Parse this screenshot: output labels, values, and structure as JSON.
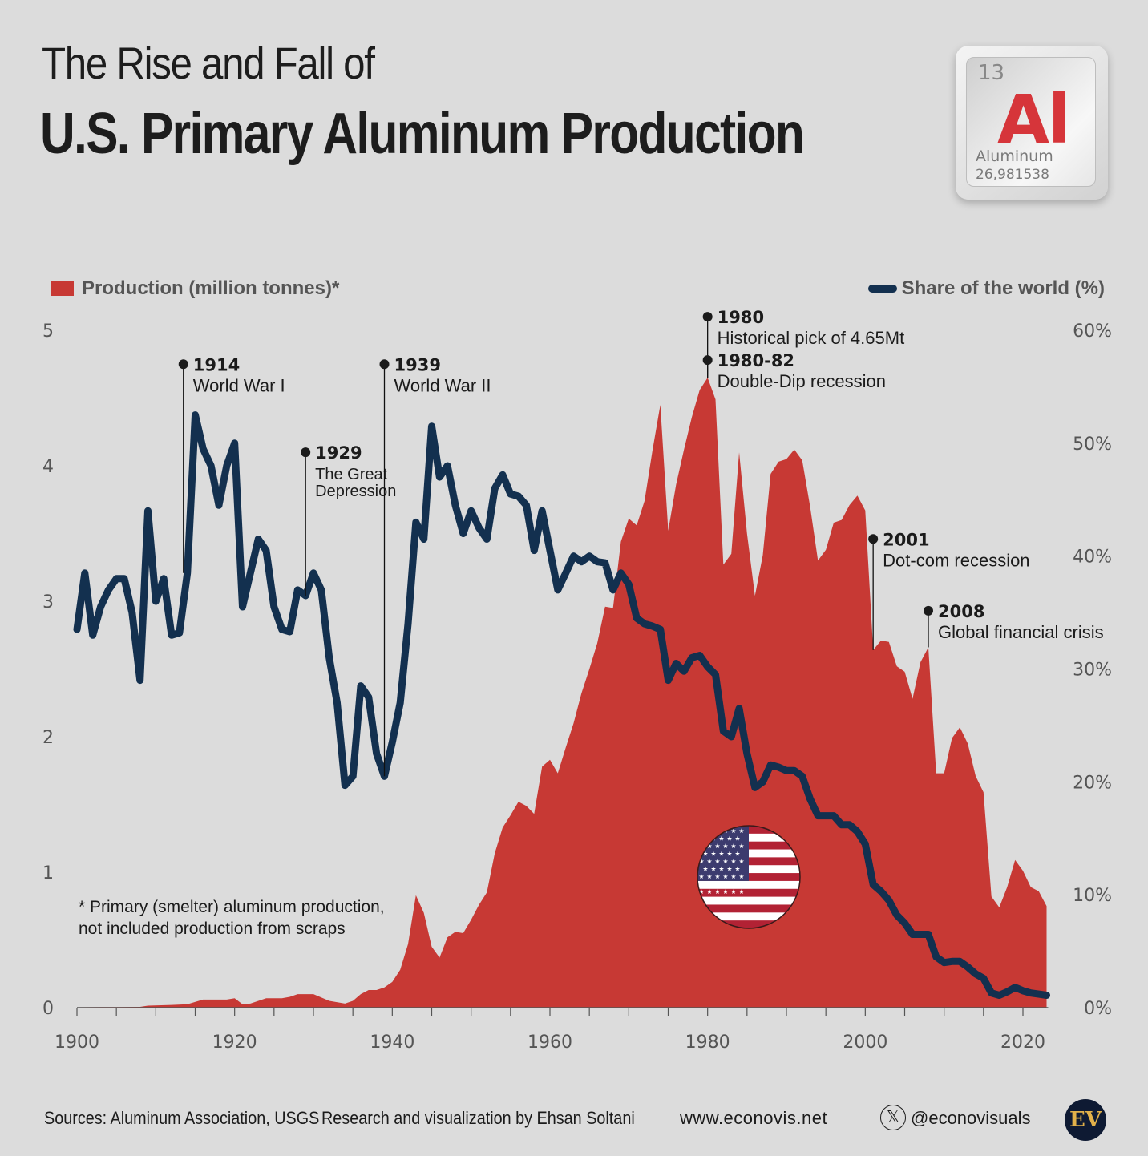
{
  "header": {
    "title_line1": "The Rise and Fall of",
    "title_line2": "U.S. Primary Aluminum Production"
  },
  "element_tile": {
    "atomic_number": "13",
    "symbol": "Al",
    "name": "Aluminum",
    "atomic_mass": "26,981538",
    "symbol_color": "#d6353a"
  },
  "legend": {
    "production_label": "Production (million tonnes)*",
    "share_label": "Share of the world (%)",
    "production_color": "#c73934",
    "share_color": "#13304f"
  },
  "footnote": {
    "line1": "* Primary (smelter) aluminum production,",
    "line2": "not included production from scraps"
  },
  "footer": {
    "sources": "Sources: Aluminum Association, USGS",
    "research": "Research and visualization by Ehsan Soltani",
    "website": "www.econovis.net",
    "x_icon": "𝕏",
    "handle": "@econovisuals",
    "logo": "EV"
  },
  "chart_data": {
    "type": "area",
    "title": "U.S. Primary Aluminum Production",
    "xlabel": "",
    "ylabel_left": "Production (million tonnes)",
    "ylabel_right": "Share of the world (%)",
    "xlim": [
      1900,
      2023
    ],
    "ylim_left": [
      0,
      5
    ],
    "ylim_right": [
      0,
      60
    ],
    "x_ticks": [
      1900,
      1920,
      1940,
      1960,
      1980,
      2000,
      2020
    ],
    "y_ticks_left": [
      "0",
      "1",
      "2",
      "3",
      "4",
      "5"
    ],
    "y_ticks_right": [
      "0%",
      "10%",
      "20%",
      "30%",
      "40%",
      "50%",
      "60%"
    ],
    "legend_position": "top",
    "series": [
      {
        "name": "Production (million tonnes)",
        "type": "area",
        "axis": "left",
        "points": [
          [
            1900,
            0.003
          ],
          [
            1905,
            0.005
          ],
          [
            1908,
            0.006
          ],
          [
            1909,
            0.015
          ],
          [
            1912,
            0.02
          ],
          [
            1914,
            0.025
          ],
          [
            1916,
            0.06
          ],
          [
            1919,
            0.06
          ],
          [
            1920,
            0.07
          ],
          [
            1921,
            0.025
          ],
          [
            1922,
            0.03
          ],
          [
            1924,
            0.07
          ],
          [
            1926,
            0.07
          ],
          [
            1927,
            0.08
          ],
          [
            1928,
            0.1
          ],
          [
            1930,
            0.1
          ],
          [
            1932,
            0.05
          ],
          [
            1934,
            0.03
          ],
          [
            1935,
            0.05
          ],
          [
            1936,
            0.1
          ],
          [
            1937,
            0.13
          ],
          [
            1938,
            0.13
          ],
          [
            1939,
            0.15
          ],
          [
            1940,
            0.19
          ],
          [
            1941,
            0.28
          ],
          [
            1942,
            0.47
          ],
          [
            1943,
            0.83
          ],
          [
            1944,
            0.7
          ],
          [
            1945,
            0.45
          ],
          [
            1946,
            0.37
          ],
          [
            1947,
            0.52
          ],
          [
            1948,
            0.56
          ],
          [
            1949,
            0.55
          ],
          [
            1950,
            0.65
          ],
          [
            1951,
            0.76
          ],
          [
            1952,
            0.85
          ],
          [
            1953,
            1.14
          ],
          [
            1954,
            1.33
          ],
          [
            1955,
            1.42
          ],
          [
            1956,
            1.52
          ],
          [
            1957,
            1.49
          ],
          [
            1958,
            1.43
          ],
          [
            1959,
            1.78
          ],
          [
            1960,
            1.83
          ],
          [
            1961,
            1.73
          ],
          [
            1962,
            1.92
          ],
          [
            1963,
            2.1
          ],
          [
            1964,
            2.32
          ],
          [
            1965,
            2.5
          ],
          [
            1966,
            2.69
          ],
          [
            1967,
            2.96
          ],
          [
            1968,
            2.95
          ],
          [
            1969,
            3.44
          ],
          [
            1970,
            3.61
          ],
          [
            1971,
            3.56
          ],
          [
            1972,
            3.74
          ],
          [
            1973,
            4.11
          ],
          [
            1974,
            4.45
          ],
          [
            1975,
            3.52
          ],
          [
            1976,
            3.86
          ],
          [
            1977,
            4.12
          ],
          [
            1978,
            4.36
          ],
          [
            1979,
            4.56
          ],
          [
            1980,
            4.65
          ],
          [
            1981,
            4.49
          ],
          [
            1982,
            3.27
          ],
          [
            1983,
            3.35
          ],
          [
            1984,
            4.1
          ],
          [
            1985,
            3.5
          ],
          [
            1986,
            3.04
          ],
          [
            1987,
            3.34
          ],
          [
            1988,
            3.94
          ],
          [
            1989,
            4.03
          ],
          [
            1990,
            4.05
          ],
          [
            1991,
            4.12
          ],
          [
            1992,
            4.04
          ],
          [
            1993,
            3.7
          ],
          [
            1994,
            3.3
          ],
          [
            1995,
            3.38
          ],
          [
            1996,
            3.58
          ],
          [
            1997,
            3.6
          ],
          [
            1998,
            3.71
          ],
          [
            1999,
            3.78
          ],
          [
            2000,
            3.67
          ],
          [
            2001,
            2.64
          ],
          [
            2002,
            2.71
          ],
          [
            2003,
            2.7
          ],
          [
            2004,
            2.52
          ],
          [
            2005,
            2.48
          ],
          [
            2006,
            2.28
          ],
          [
            2007,
            2.55
          ],
          [
            2008,
            2.66
          ],
          [
            2009,
            1.73
          ],
          [
            2010,
            1.73
          ],
          [
            2011,
            1.99
          ],
          [
            2012,
            2.07
          ],
          [
            2013,
            1.95
          ],
          [
            2014,
            1.71
          ],
          [
            2015,
            1.59
          ],
          [
            2016,
            0.82
          ],
          [
            2017,
            0.74
          ],
          [
            2018,
            0.89
          ],
          [
            2019,
            1.09
          ],
          [
            2020,
            1.01
          ],
          [
            2021,
            0.89
          ],
          [
            2022,
            0.86
          ],
          [
            2023,
            0.75
          ]
        ]
      },
      {
        "name": "Share of the world (%)",
        "type": "line",
        "axis": "right",
        "points": [
          [
            1900,
            33.5
          ],
          [
            1901,
            38.5
          ],
          [
            1902,
            33.0
          ],
          [
            1903,
            35.5
          ],
          [
            1904,
            37.0
          ],
          [
            1905,
            38.0
          ],
          [
            1906,
            38.0
          ],
          [
            1907,
            35.0
          ],
          [
            1908,
            29.0
          ],
          [
            1909,
            44.0
          ],
          [
            1910,
            36.0
          ],
          [
            1911,
            38.0
          ],
          [
            1912,
            33.0
          ],
          [
            1913,
            33.2
          ],
          [
            1914,
            38.5
          ],
          [
            1915,
            52.5
          ],
          [
            1916,
            49.5
          ],
          [
            1917,
            48.0
          ],
          [
            1918,
            44.5
          ],
          [
            1919,
            48.0
          ],
          [
            1920,
            50.0
          ],
          [
            1921,
            35.5
          ],
          [
            1922,
            38.5
          ],
          [
            1923,
            41.5
          ],
          [
            1924,
            40.5
          ],
          [
            1925,
            35.5
          ],
          [
            1926,
            33.5
          ],
          [
            1927,
            33.3
          ],
          [
            1928,
            37.0
          ],
          [
            1929,
            36.5
          ],
          [
            1930,
            38.5
          ],
          [
            1931,
            37.0
          ],
          [
            1932,
            31.0
          ],
          [
            1933,
            27.0
          ],
          [
            1934,
            19.7
          ],
          [
            1935,
            20.5
          ],
          [
            1936,
            28.5
          ],
          [
            1937,
            27.5
          ],
          [
            1938,
            22.5
          ],
          [
            1939,
            20.5
          ],
          [
            1940,
            23.5
          ],
          [
            1941,
            27.0
          ],
          [
            1942,
            34.0
          ],
          [
            1943,
            43.0
          ],
          [
            1944,
            41.5
          ],
          [
            1945,
            51.5
          ],
          [
            1946,
            47.0
          ],
          [
            1947,
            48.0
          ],
          [
            1948,
            44.5
          ],
          [
            1949,
            42.0
          ],
          [
            1950,
            44.0
          ],
          [
            1951,
            42.5
          ],
          [
            1952,
            41.5
          ],
          [
            1953,
            46.0
          ],
          [
            1954,
            47.2
          ],
          [
            1955,
            45.5
          ],
          [
            1956,
            45.3
          ],
          [
            1957,
            44.5
          ],
          [
            1958,
            40.5
          ],
          [
            1959,
            44.0
          ],
          [
            1960,
            40.5
          ],
          [
            1961,
            37.0
          ],
          [
            1962,
            38.5
          ],
          [
            1963,
            40.0
          ],
          [
            1964,
            39.5
          ],
          [
            1965,
            40.0
          ],
          [
            1966,
            39.5
          ],
          [
            1967,
            39.4
          ],
          [
            1968,
            37.0
          ],
          [
            1969,
            38.5
          ],
          [
            1970,
            37.5
          ],
          [
            1971,
            34.5
          ],
          [
            1972,
            34.0
          ],
          [
            1973,
            33.8
          ],
          [
            1974,
            33.5
          ],
          [
            1975,
            29.0
          ],
          [
            1976,
            30.5
          ],
          [
            1977,
            29.8
          ],
          [
            1978,
            31.0
          ],
          [
            1979,
            31.2
          ],
          [
            1980,
            30.2
          ],
          [
            1981,
            29.5
          ],
          [
            1982,
            24.5
          ],
          [
            1983,
            24.0
          ],
          [
            1984,
            26.5
          ],
          [
            1985,
            22.5
          ],
          [
            1986,
            19.5
          ],
          [
            1987,
            20.0
          ],
          [
            1988,
            21.5
          ],
          [
            1989,
            21.3
          ],
          [
            1990,
            21.0
          ],
          [
            1991,
            21.0
          ],
          [
            1992,
            20.5
          ],
          [
            1993,
            18.5
          ],
          [
            1994,
            17.0
          ],
          [
            1995,
            17.0
          ],
          [
            1996,
            17.0
          ],
          [
            1997,
            16.2
          ],
          [
            1998,
            16.2
          ],
          [
            1999,
            15.6
          ],
          [
            2000,
            14.5
          ],
          [
            2001,
            10.9
          ],
          [
            2002,
            10.3
          ],
          [
            2003,
            9.5
          ],
          [
            2004,
            8.2
          ],
          [
            2005,
            7.5
          ],
          [
            2006,
            6.5
          ],
          [
            2007,
            6.5
          ],
          [
            2008,
            6.5
          ],
          [
            2009,
            4.5
          ],
          [
            2010,
            4.0
          ],
          [
            2011,
            4.1
          ],
          [
            2012,
            4.1
          ],
          [
            2013,
            3.6
          ],
          [
            2014,
            3.0
          ],
          [
            2015,
            2.6
          ],
          [
            2016,
            1.3
          ],
          [
            2017,
            1.1
          ],
          [
            2018,
            1.4
          ],
          [
            2019,
            1.8
          ],
          [
            2020,
            1.5
          ],
          [
            2021,
            1.3
          ],
          [
            2022,
            1.2
          ],
          [
            2023,
            1.1
          ]
        ]
      }
    ],
    "annotations": [
      {
        "year_label": "1914",
        "text": [
          "World War I"
        ],
        "x": 1913.5,
        "y_data_end": 38.5,
        "axis": "right",
        "label_level": 4.75
      },
      {
        "year_label": "1929",
        "text": [
          "The Great",
          "Depression"
        ],
        "x": 1929,
        "y_data_end": 36.5,
        "axis": "right",
        "label_level": 4.1
      },
      {
        "year_label": "1939",
        "text": [
          "World War II"
        ],
        "x": 1939,
        "y_data_end": 20.5,
        "axis": "right",
        "label_level": 4.75
      },
      {
        "year_label": "1980",
        "text": [
          "Historical pick of 4.65Mt"
        ],
        "x": 1980,
        "y_data_end": 4.65,
        "axis": "left",
        "label_level": 5.1
      },
      {
        "year_label": "1980-82",
        "text": [
          "Double-Dip recession"
        ],
        "x": 1980,
        "y_data_end": 4.65,
        "axis": "left",
        "label_level": 4.78
      },
      {
        "year_label": "2001",
        "text": [
          "Dot-com recession"
        ],
        "x": 2001,
        "y_data_end": 2.64,
        "axis": "left",
        "label_level": 3.46
      },
      {
        "year_label": "2008",
        "text": [
          "Global financial crisis"
        ],
        "x": 2008,
        "y_data_end": 2.66,
        "axis": "left",
        "label_level": 2.93
      }
    ]
  }
}
